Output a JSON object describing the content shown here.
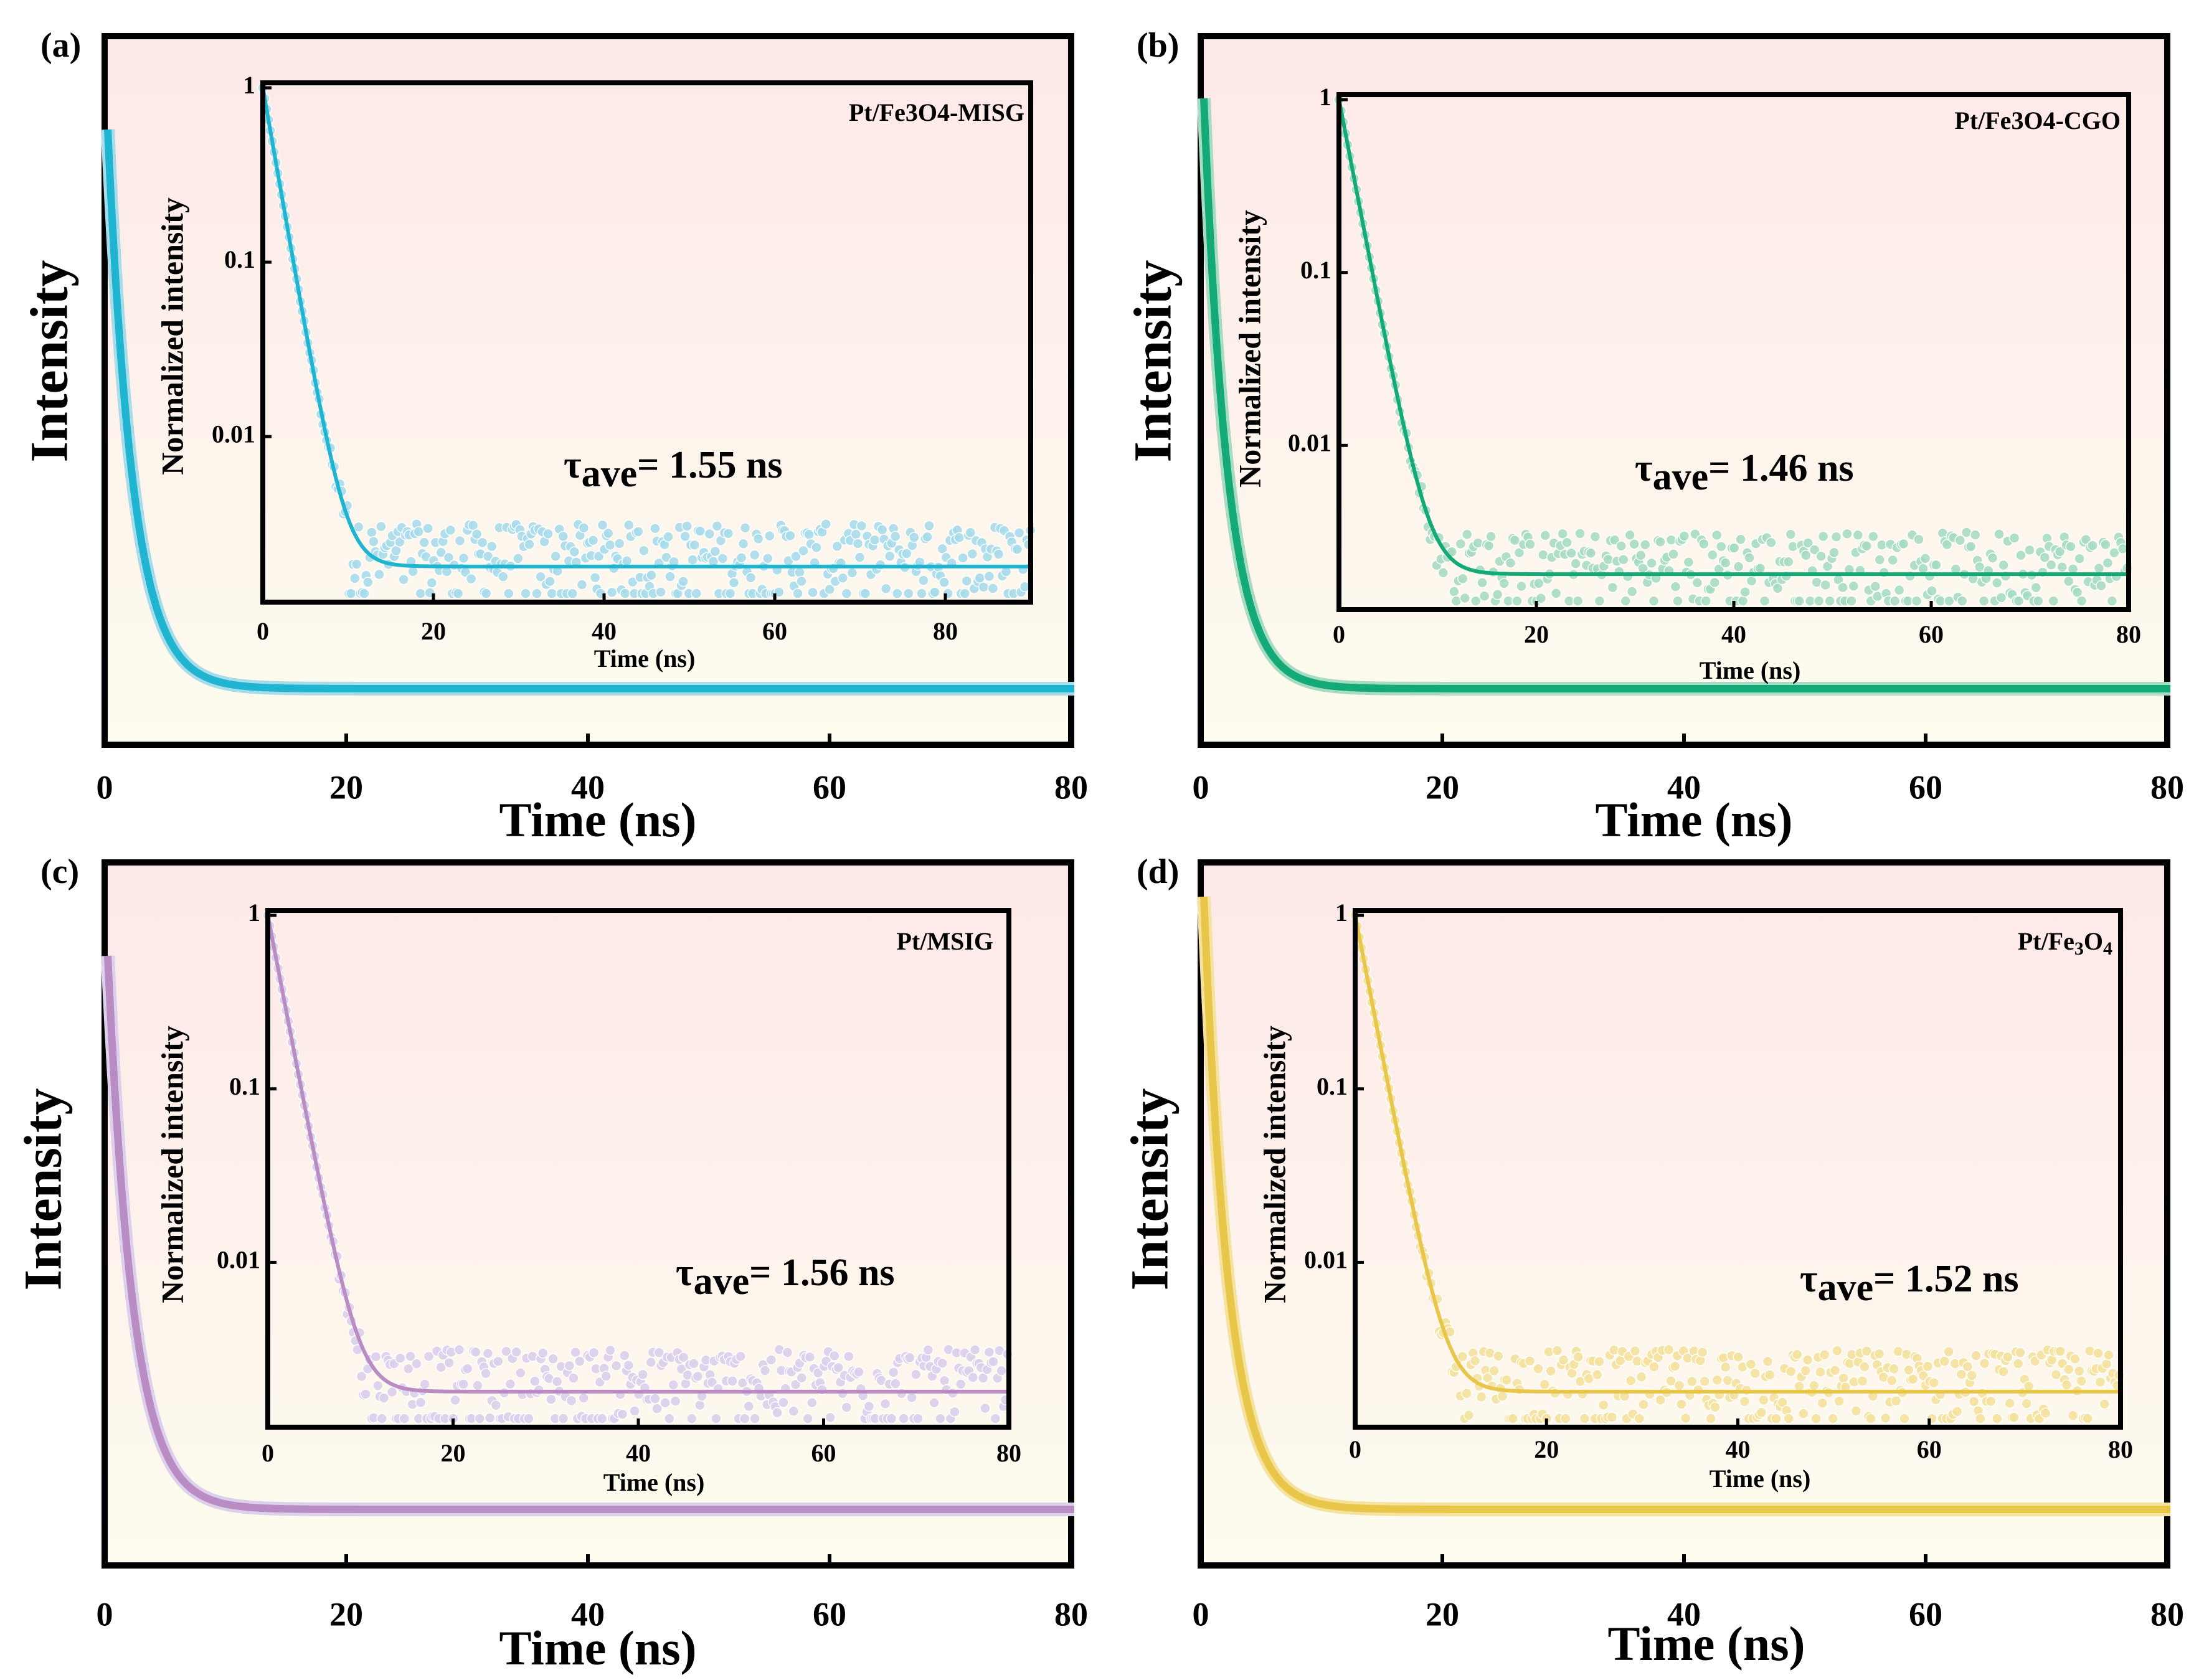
{
  "chart_data": [
    {
      "panel_label": "(a)",
      "type": "line",
      "color": "#1fb5d0",
      "light_color": "#a9dcea",
      "ylabel": "Intensity",
      "xlabel": "Time (ns)",
      "xlim": [
        0,
        80
      ],
      "xticks": [
        "0",
        "20",
        "40",
        "60",
        "80"
      ],
      "decay": {
        "tau_ns": 1.55,
        "peak_time_ns": 0,
        "baseline_fraction": 0.0017
      },
      "inset": {
        "sample": "Pt/Fe3O4-MISG",
        "sample_parts": [
          {
            "t": "Pt/Fe",
            "sub": false
          },
          {
            "t": "3",
            "sub": false
          },
          {
            "t": "O",
            "sub": false
          },
          {
            "t": "4",
            "sub": false
          },
          {
            "t": "-MISG",
            "sub": false
          }
        ],
        "ylabel": "Normalized intensity",
        "xlabel": "Time (ns)",
        "xlim": [
          0,
          90
        ],
        "xticks": [
          "0",
          "20",
          "40",
          "60",
          "80"
        ],
        "yticks": [
          "1",
          "0.1",
          "0.01"
        ],
        "ylim_log": [
          0.0012,
          1
        ],
        "tau_label": "τ",
        "tau_sub": "ave",
        "tau_value": "= 1.55 ns"
      }
    },
    {
      "panel_label": "(b)",
      "type": "line",
      "color": "#13aa78",
      "light_color": "#a8dcc2",
      "ylabel": "Intensity",
      "xlabel": "Time (ns)",
      "xlim": [
        0,
        80
      ],
      "xticks": [
        "0",
        "20",
        "40",
        "60",
        "80"
      ],
      "decay": {
        "tau_ns": 1.46,
        "peak_time_ns": 0,
        "baseline_fraction": 0.0017
      },
      "inset": {
        "sample": "Pt/Fe3O4-CGO",
        "sample_parts": [
          {
            "t": "Pt/Fe",
            "sub": false
          },
          {
            "t": "3",
            "sub": false
          },
          {
            "t": "O",
            "sub": false
          },
          {
            "t": "4",
            "sub": false
          },
          {
            "t": "-CGO",
            "sub": false
          }
        ],
        "ylabel": "Normalized intensity",
        "xlabel": "Time (ns)",
        "xlim": [
          0,
          80
        ],
        "xticks": [
          "0",
          "20",
          "40",
          "60",
          "80"
        ],
        "yticks": [
          "1",
          "0.1",
          "0.01"
        ],
        "ylim_log": [
          0.0012,
          1
        ],
        "tau_label": "τ",
        "tau_sub": "ave",
        "tau_value": "= 1.46 ns"
      }
    },
    {
      "panel_label": "(c)",
      "type": "line",
      "color": "#b98cc4",
      "light_color": "#dcd0ec",
      "ylabel": "Intensity",
      "xlabel": "Time (ns)",
      "xlim": [
        0,
        80
      ],
      "xticks": [
        "0",
        "20",
        "40",
        "60",
        "80"
      ],
      "decay": {
        "tau_ns": 1.56,
        "peak_time_ns": 0,
        "baseline_fraction": 0.0017
      },
      "inset": {
        "sample": "Pt/MSIG",
        "sample_parts": [
          {
            "t": "Pt/MSIG",
            "sub": false
          }
        ],
        "ylabel": "Normalized intensity",
        "xlabel": "Time (ns)",
        "xlim": [
          0,
          80
        ],
        "xticks": [
          "0",
          "20",
          "40",
          "60",
          "80"
        ],
        "yticks": [
          "1",
          "0.1",
          "0.01"
        ],
        "ylim_log": [
          0.0012,
          1
        ],
        "tau_label": "τ",
        "tau_sub": "ave",
        "tau_value": "= 1.56 ns"
      }
    },
    {
      "panel_label": "(d)",
      "type": "line",
      "color": "#e8c64a",
      "light_color": "#f5e29e",
      "ylabel": "Intensity",
      "xlabel": "Time (ns)",
      "xlim": [
        0,
        80
      ],
      "xticks": [
        "0",
        "20",
        "40",
        "60",
        "80"
      ],
      "decay": {
        "tau_ns": 1.52,
        "peak_time_ns": 0,
        "baseline_fraction": 0.0017
      },
      "inset": {
        "sample": "Pt/Fe3O4",
        "sample_parts": [
          {
            "t": "Pt/Fe",
            "sub": false
          },
          {
            "t": "3",
            "sub": true
          },
          {
            "t": "O",
            "sub": false
          },
          {
            "t": "4",
            "sub": true
          }
        ],
        "ylabel": "Normalized intensity",
        "xlabel": "Time (ns)",
        "xlim": [
          0,
          80
        ],
        "xticks": [
          "0",
          "20",
          "40",
          "60",
          "80"
        ],
        "yticks": [
          "1",
          "0.1",
          "0.01"
        ],
        "ylim_log": [
          0.0012,
          1
        ],
        "tau_label": "τ",
        "tau_sub": "ave",
        "tau_value": "= 1.52 ns"
      }
    }
  ]
}
